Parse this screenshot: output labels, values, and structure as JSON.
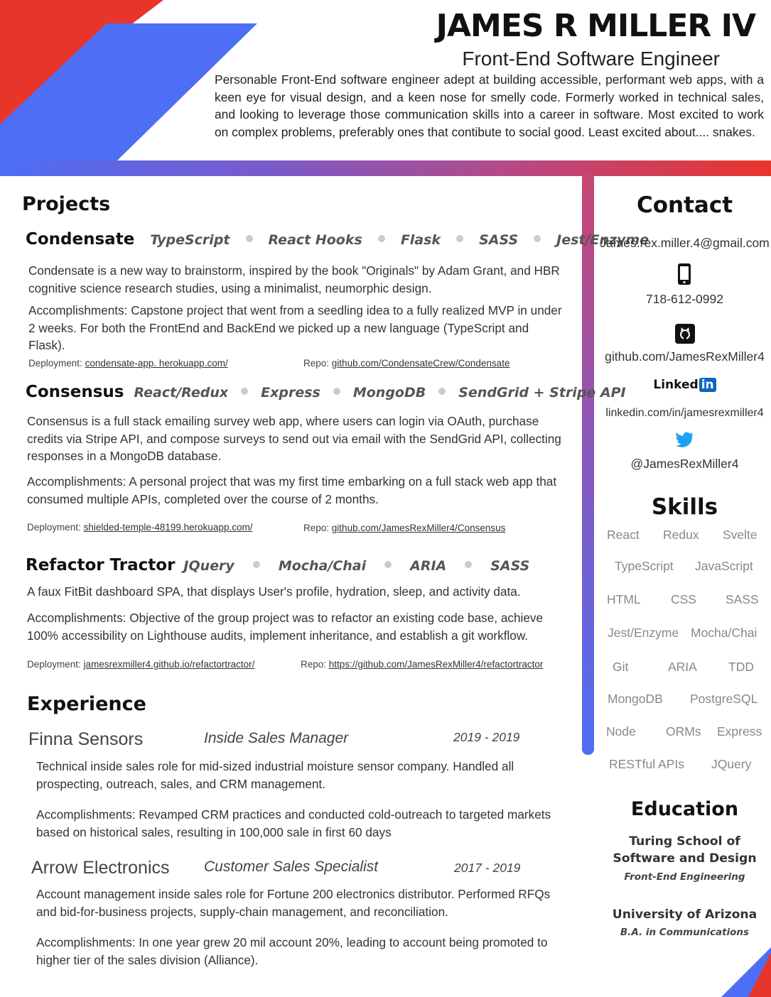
{
  "header": {
    "name": "JAMES R MILLER IV",
    "role": "Front-End Software Engineer",
    "summary": "Personable Front-End software engineer adept at building accessible, performant web apps, with a keen eye for visual design, and a keen nose for smelly code. Formerly worked in technical sales, and looking to leverage those communication skills into a career in software. Most excited to work on complex problems, preferably ones that contibute to social good. Least excited about.... snakes."
  },
  "colors": {
    "red": "#e8352a",
    "blue": "#4d6ef5",
    "purple": "#8a56b8"
  },
  "projects": {
    "title": "Projects",
    "items": [
      {
        "name": "Condensate",
        "tech": [
          "TypeScript",
          "React Hooks",
          "Flask",
          "SASS",
          "Jest/Enzyme"
        ],
        "description": "Condensate is a new way to brainstorm, inspired by the book \"Originals\" by Adam Grant, and HBR cognitive science research studies, using a minimalist, neumorphic design.",
        "accomplishments": "Accomplishments: Capstone project that went from a seedling idea to a fully realized MVP in under 2 weeks. For both the FrontEnd and BackEnd we picked up a new language (TypeScript and Flask).",
        "deployment_label": "Deployment:",
        "deployment": "condensate-app. herokuapp.com/",
        "repo_label": "Repo:",
        "repo": "github.com/CondensateCrew/Condensate"
      },
      {
        "name": "Consensus",
        "tech": [
          "React/Redux",
          "Express",
          "MongoDB",
          "SendGrid + Stripe API"
        ],
        "description": "Consensus is a full stack emailing survey web app, where users can login via OAuth, purchase credits via Stripe API, and compose surveys to send out via email with the SendGrid API, collecting responses in a MongoDB database.",
        "accomplishments": "Accomplishments: A personal project that was my first time embarking on a full stack web app that consumed multiple APIs, completed over the course of 2 months.",
        "deployment_label": "Deployment:",
        "deployment": "shielded-temple-48199.herokuapp.com/",
        "repo_label": "Repo:",
        "repo": "github.com/JamesRexMiller4/Consensus"
      },
      {
        "name": "Refactor Tractor",
        "tech": [
          "JQuery",
          "Mocha/Chai",
          "ARIA",
          "SASS"
        ],
        "description": "A faux FitBit dashboard SPA, that displays User's profile, hydration, sleep, and activity data.",
        "accomplishments": "Accomplishments: Objective of the group project was to refactor an existing code base, achieve 100% accessibility on Lighthouse audits, implement inheritance, and establish a git workflow.",
        "deployment_label": "Deployment:",
        "deployment": "jamesrexmiller4.github.io/refactortractor/",
        "repo_label": "Repo:",
        "repo": "https://github.com/JamesRexMiller4/refactortractor"
      }
    ]
  },
  "experience": {
    "title": "Experience",
    "items": [
      {
        "company": "Finna Sensors",
        "title": "Inside Sales Manager",
        "dates": "2019 - 2019",
        "description": "Technical inside sales role for mid-sized industrial moisture sensor company. Handled all prospecting, outreach, sales, and CRM management.",
        "accomplishments": "Accomplishments: Revamped CRM practices and conducted cold-outreach to targeted markets based on historical sales, resulting in 100,000 sale in first 60 days"
      },
      {
        "company": "Arrow Electronics",
        "title": "Customer Sales Specialist",
        "dates": "2017 - 2019",
        "description": "Account management inside sales role for Fortune 200 electronics distributor. Performed RFQs and bid-for-business projects, supply-chain management, and reconciliation.",
        "accomplishments": "Accomplishments: In one year grew 20 mil account 20%, leading to account being promoted to higher tier  of the sales division (Alliance)."
      }
    ]
  },
  "contact": {
    "title": "Contact",
    "email": "James.rex.miller.4@gmail.com",
    "phone": "718-612-0992",
    "github": "github.com/JamesRexMiller4",
    "linkedin_logo": "Linked",
    "linkedin_logo_in": "in",
    "linkedin": "linkedin.com/in/jamesrexmiller4",
    "twitter": "@JamesRexMiller4",
    "icons": [
      "phone-icon",
      "github-icon",
      "linkedin-icon",
      "twitter-icon"
    ]
  },
  "skills": {
    "title": "Skills",
    "items": [
      "React",
      "Redux",
      "Svelte",
      "TypeScript",
      "JavaScript",
      "HTML",
      "CSS",
      "SASS",
      "Jest/Enzyme",
      "Mocha/Chai",
      "Git",
      "ARIA",
      "TDD",
      "MongoDB",
      "PostgreSQL",
      "Node",
      "ORMs",
      "Express",
      "RESTful APIs",
      "JQuery"
    ]
  },
  "education": {
    "title": "Education",
    "items": [
      {
        "school_line1": "Turing School of",
        "school_line2": "Software and Design",
        "degree": "Front-End Engineering"
      },
      {
        "school_line1": "University of Arizona",
        "degree": "B.A. in Communications"
      }
    ]
  }
}
